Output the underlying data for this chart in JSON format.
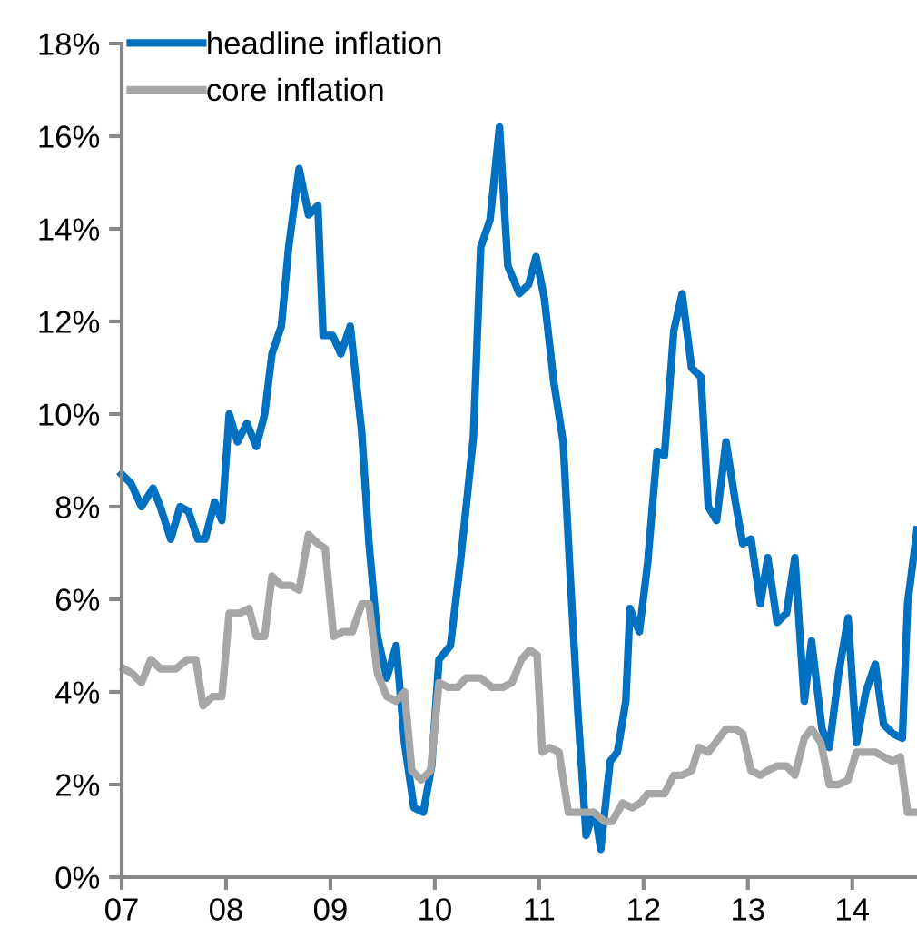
{
  "chart_data": {
    "type": "line",
    "x": [
      2007.0,
      2007.09,
      2007.19,
      2007.3,
      2007.37,
      2007.47,
      2007.56,
      2007.64,
      2007.73,
      2007.8,
      2007.89,
      2007.96,
      2008.03,
      2008.11,
      2008.2,
      2008.29,
      2008.37,
      2008.44,
      2008.53,
      2008.6,
      2008.7,
      2008.79,
      2008.88,
      2008.93,
      2009.02,
      2009.1,
      2009.19,
      2009.3,
      2009.37,
      2009.45,
      2009.54,
      2009.63,
      2009.71,
      2009.8,
      2009.89,
      2009.97,
      2010.04,
      2010.15,
      2010.25,
      2010.37,
      2010.44,
      2010.53,
      2010.62,
      2010.7,
      2010.81,
      2010.9,
      2010.97,
      2011.05,
      2011.14,
      2011.23,
      2011.3,
      2011.37,
      2011.45,
      2011.52,
      2011.55,
      2011.59,
      2011.68,
      2011.75,
      2011.83,
      2011.87,
      2011.96,
      2012.04,
      2012.13,
      2012.2,
      2012.29,
      2012.37,
      2012.46,
      2012.55,
      2012.62,
      2012.7,
      2012.79,
      2012.88,
      2012.95,
      2013.03,
      2013.12,
      2013.19,
      2013.28,
      2013.37,
      2013.45,
      2013.54,
      2013.61,
      2013.71,
      2013.78,
      2013.87,
      2013.96,
      2014.04,
      2014.13,
      2014.22,
      2014.3,
      2014.39,
      2014.48,
      2014.53,
      2014.62
    ],
    "series": [
      {
        "name": "headline inflation",
        "color": "#0070c0",
        "values": [
          8.7,
          8.5,
          8.0,
          8.4,
          8.0,
          7.3,
          8.0,
          7.9,
          7.3,
          7.3,
          8.1,
          7.7,
          10.0,
          9.4,
          9.8,
          9.3,
          10.0,
          11.3,
          11.9,
          13.6,
          15.3,
          14.3,
          14.5,
          11.7,
          11.7,
          11.3,
          11.9,
          9.6,
          7.2,
          5.2,
          4.3,
          5.0,
          2.9,
          1.5,
          1.4,
          2.4,
          4.7,
          5.0,
          6.9,
          9.5,
          13.6,
          14.2,
          16.2,
          13.2,
          12.6,
          12.8,
          13.4,
          12.5,
          10.7,
          9.4,
          6.4,
          3.6,
          0.9,
          1.4,
          1.2,
          0.6,
          2.5,
          2.7,
          3.8,
          5.8,
          5.3,
          6.8,
          9.2,
          9.1,
          11.8,
          12.6,
          11.0,
          10.8,
          8.0,
          7.7,
          9.4,
          8.1,
          7.2,
          7.3,
          5.9,
          6.9,
          5.5,
          5.7,
          6.9,
          3.8,
          5.1,
          3.2,
          2.8,
          4.4,
          5.6,
          2.9,
          4.0,
          4.6,
          3.3,
          3.1,
          3.0,
          5.9,
          7.5
        ]
      },
      {
        "name": "core inflation",
        "color": "#a6a6a6",
        "x": [
          2007.02,
          2007.1,
          2007.19,
          2007.28,
          2007.37,
          2007.52,
          2007.63,
          2007.71,
          2007.78,
          2007.87,
          2007.96,
          2008.03,
          2008.13,
          2008.22,
          2008.29,
          2008.37,
          2008.44,
          2008.53,
          2008.62,
          2008.7,
          2008.79,
          2008.88,
          2008.95,
          2009.03,
          2009.12,
          2009.21,
          2009.3,
          2009.37,
          2009.45,
          2009.54,
          2009.63,
          2009.71,
          2009.78,
          2009.87,
          2009.96,
          2010.04,
          2010.13,
          2010.22,
          2010.3,
          2010.39,
          2010.44,
          2010.55,
          2010.65,
          2010.74,
          2010.83,
          2010.91,
          2010.98,
          2011.03,
          2011.1,
          2011.19,
          2011.28,
          2011.37,
          2011.52,
          2011.63,
          2011.7,
          2011.75,
          2011.8,
          2011.89,
          2011.97,
          2012.04,
          2012.13,
          2012.2,
          2012.29,
          2012.37,
          2012.46,
          2012.53,
          2012.62,
          2012.69,
          2012.79,
          2012.88,
          2012.95,
          2013.03,
          2013.12,
          2013.19,
          2013.28,
          2013.37,
          2013.45,
          2013.54,
          2013.61,
          2013.7,
          2013.78,
          2013.87,
          2013.96,
          2014.04,
          2014.13,
          2014.22,
          2014.3,
          2014.39,
          2014.46,
          2014.53,
          2014.62
        ],
        "values": [
          4.5,
          4.4,
          4.2,
          4.7,
          4.5,
          4.5,
          4.7,
          4.7,
          3.7,
          3.9,
          3.9,
          5.7,
          5.7,
          5.8,
          5.2,
          5.2,
          6.5,
          6.3,
          6.3,
          6.2,
          7.4,
          7.2,
          7.1,
          5.2,
          5.3,
          5.3,
          5.9,
          5.9,
          4.4,
          3.9,
          3.8,
          4.0,
          2.3,
          2.1,
          2.3,
          4.2,
          4.1,
          4.1,
          4.3,
          4.3,
          4.3,
          4.1,
          4.1,
          4.2,
          4.7,
          4.9,
          4.8,
          2.7,
          2.8,
          2.7,
          1.4,
          1.4,
          1.4,
          1.2,
          1.2,
          1.4,
          1.6,
          1.5,
          1.6,
          1.8,
          1.8,
          1.8,
          2.2,
          2.2,
          2.3,
          2.8,
          2.7,
          2.9,
          3.2,
          3.2,
          3.1,
          2.3,
          2.2,
          2.3,
          2.4,
          2.4,
          2.2,
          3.0,
          3.2,
          2.9,
          2.0,
          2.0,
          2.1,
          2.7,
          2.7,
          2.7,
          2.6,
          2.5,
          2.6,
          1.4,
          1.4
        ]
      }
    ],
    "xlim": [
      2007,
      2014.62
    ],
    "xticks": [
      {
        "value": 2007,
        "label": "07"
      },
      {
        "value": 2008,
        "label": "08"
      },
      {
        "value": 2009,
        "label": "09"
      },
      {
        "value": 2010,
        "label": "10"
      },
      {
        "value": 2011,
        "label": "11"
      },
      {
        "value": 2012,
        "label": "12"
      },
      {
        "value": 2013,
        "label": "13"
      },
      {
        "value": 2014,
        "label": "14"
      }
    ],
    "ylim": [
      0,
      18
    ],
    "yticks": [
      {
        "value": 0,
        "label": "0%"
      },
      {
        "value": 2,
        "label": "2%"
      },
      {
        "value": 4,
        "label": "4%"
      },
      {
        "value": 6,
        "label": "6%"
      },
      {
        "value": 8,
        "label": "8%"
      },
      {
        "value": 10,
        "label": "10%"
      },
      {
        "value": 12,
        "label": "12%"
      },
      {
        "value": 14,
        "label": "14%"
      },
      {
        "value": 16,
        "label": "16%"
      },
      {
        "value": 18,
        "label": "18%"
      }
    ],
    "grid": false,
    "legend": "top left",
    "marker": "none",
    "line_style": "solid"
  }
}
